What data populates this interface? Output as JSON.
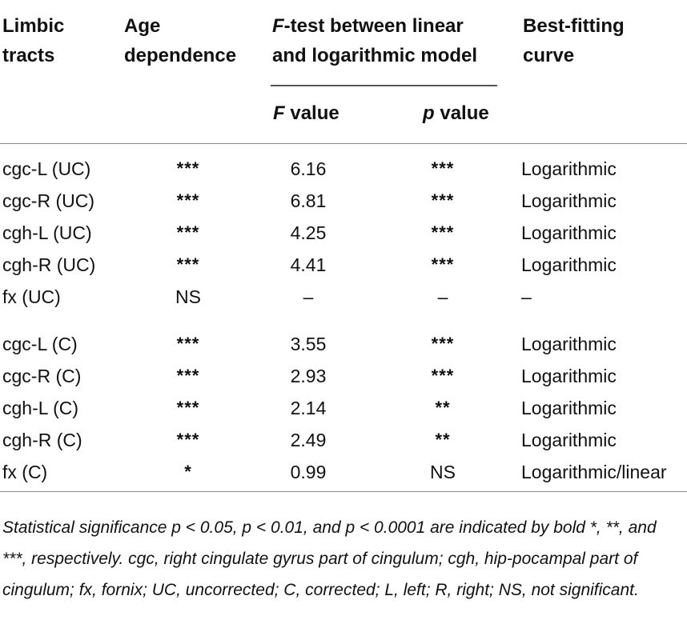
{
  "table": {
    "headers": {
      "tract_line1": "Limbic",
      "tract_line2": "tracts",
      "age_line1": "Age",
      "age_line2": "dependence",
      "ftest_italic": "F",
      "ftest_line1_rest": "-test between linear",
      "ftest_line2": "and logarithmic model",
      "fvalue_italic": "F",
      "fvalue_rest": " value",
      "pvalue_italic": "p",
      "pvalue_rest": " value",
      "curve_line1": "Best-fitting",
      "curve_line2": "curve"
    },
    "rows_uncorrected": [
      {
        "tract": "cgc-L (UC)",
        "age": "***",
        "f": "6.16",
        "p": "***",
        "curve": "Logarithmic"
      },
      {
        "tract": "cgc-R (UC)",
        "age": "***",
        "f": "6.81",
        "p": "***",
        "curve": "Logarithmic"
      },
      {
        "tract": "cgh-L (UC)",
        "age": "***",
        "f": "4.25",
        "p": "***",
        "curve": "Logarithmic"
      },
      {
        "tract": "cgh-R (UC)",
        "age": "***",
        "f": "4.41",
        "p": "***",
        "curve": "Logarithmic"
      },
      {
        "tract": "fx (UC)",
        "age": "NS",
        "f": "–",
        "p": "–",
        "curve": "–"
      }
    ],
    "rows_corrected": [
      {
        "tract": "cgc-L (C)",
        "age": "***",
        "f": "3.55",
        "p": "***",
        "curve": "Logarithmic"
      },
      {
        "tract": "cgc-R (C)",
        "age": "***",
        "f": "2.93",
        "p": "***",
        "curve": "Logarithmic"
      },
      {
        "tract": "cgh-L (C)",
        "age": "***",
        "f": "2.14",
        "p": "**",
        "curve": "Logarithmic"
      },
      {
        "tract": "cgh-R (C)",
        "age": "***",
        "f": "2.49",
        "p": "**",
        "curve": "Logarithmic"
      },
      {
        "tract": "fx (C)",
        "age": "*",
        "f": "0.99",
        "p": "NS",
        "curve": "Logarithmic/linear"
      }
    ]
  },
  "footnote": "Statistical significance p < 0.05, p < 0.01, and p < 0.0001 are indicated by bold *, **, and ***, respectively. cgc, right cingulate gyrus part of cingulum; cgh, hip-pocampal part of cingulum; fx, fornix; UC, uncorrected; C, corrected; L, left; R, right; NS, not significant."
}
